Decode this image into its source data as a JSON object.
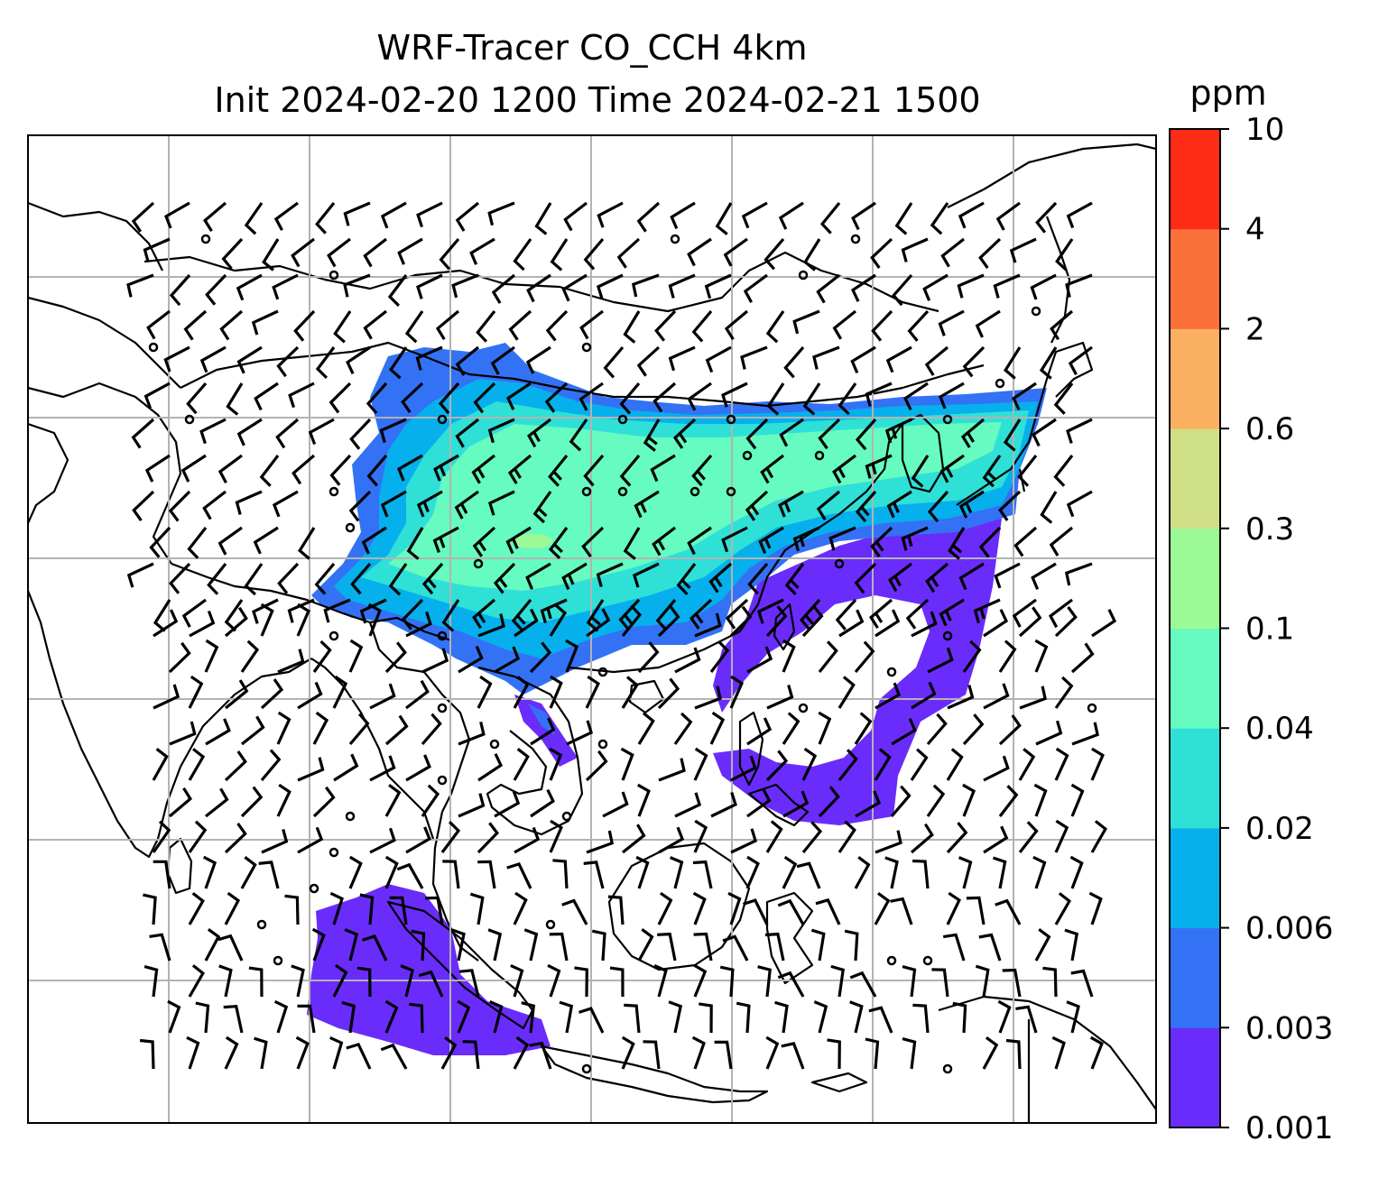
{
  "title": {
    "line1": "WRF-Tracer CO_CCH 4km",
    "line2": "Init 2024-02-20 1200 Time 2024-02-21 1500"
  },
  "map": {
    "field": "CO_CCH tracer concentration",
    "grid_lines": true,
    "grid_color": "#b3b3b3",
    "coastline_color": "#000000",
    "overlay": "wind barbs"
  },
  "colorbar": {
    "unit": "ppm",
    "ticks": [
      "0.001",
      "0.003",
      "0.006",
      "0.02",
      "0.04",
      "0.1",
      "0.3",
      "0.6",
      "2",
      "4",
      "10"
    ],
    "colors": [
      "#6a2cfa",
      "#3372f5",
      "#06b0ec",
      "#2fe0d7",
      "#66fbc0",
      "#9bfa96",
      "#d0e086",
      "#fcb062",
      "#fc713a",
      "#fc2c16"
    ]
  }
}
